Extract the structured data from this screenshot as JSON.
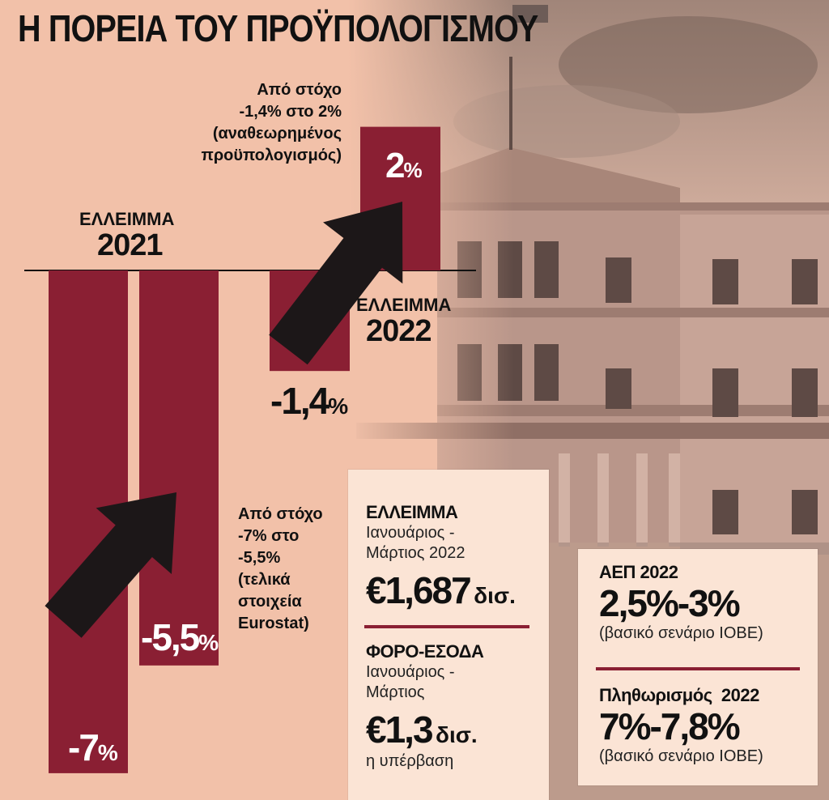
{
  "title": "Η ΠΟΡΕΙΑ ΤΟΥ ΠΡΟΫΠΟΛΟΓΙΣΜΟΥ",
  "colors": {
    "bar": "#8a1f33",
    "arrow": "#1c1718",
    "background": "#f2c1a9",
    "box": "#fbe4d5"
  },
  "chart_data": {
    "type": "bar",
    "groups": [
      {
        "label_top": "ΕΛΛΕΙΜΜΑ",
        "label_year": "2021",
        "bars": [
          {
            "value": -7,
            "label": "-7",
            "unit": "%"
          },
          {
            "value": -5.5,
            "label": "-5,5",
            "unit": "%"
          }
        ],
        "note": "Από στόχο\n-7% στο\n -5,5%\n(τελικά\nστοιχεία\nEurostat)"
      },
      {
        "label_top": "ΕΛΛΕΙΜΜΑ",
        "label_year": "2022",
        "bars": [
          {
            "value": -1.4,
            "label": "-1,4",
            "unit": "%"
          },
          {
            "value": 2,
            "label": "2",
            "unit": "%"
          }
        ],
        "note": "Από στόχο\n-1,4% στο 2%\n(αναθεωρημένος\nπροϋπολογισμός)"
      }
    ]
  },
  "info_left": {
    "deficit_title": "ΕΛΛΕΙΜΜΑ",
    "deficit_period": "Ιανουάριος -\nΜάρτιος 2022",
    "deficit_value": "€1,687",
    "deficit_unit": "δισ.",
    "tax_title": "ΦΟΡΟ-ΕΣΟΔΑ",
    "tax_period": "Ιανουάριος -\nΜάρτιος",
    "tax_value": "€1,3",
    "tax_unit": "δισ.",
    "tax_note": "η υπέρβαση"
  },
  "info_right": {
    "gdp_title": "ΑΕΠ 2022",
    "gdp_value": "2,5%-3%",
    "gdp_note": "(βασικό σενάριο ΙΟΒΕ)",
    "infl_title": "Πληθωρισμός  2022",
    "infl_value": "7%-7,8%",
    "infl_note": "(βασικό σενάριο ΙΟΒΕ)"
  }
}
